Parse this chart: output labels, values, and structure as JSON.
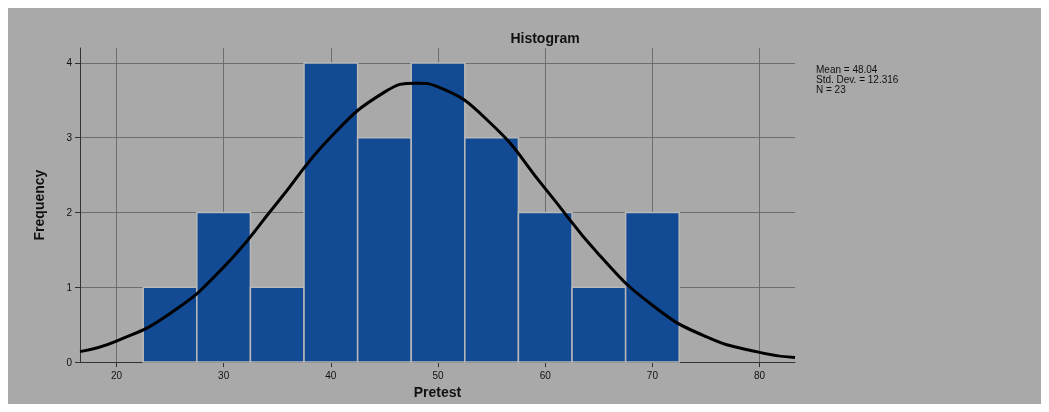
{
  "chart_data": {
    "type": "histogram",
    "title": "Histogram",
    "xlabel": "Pretest",
    "ylabel": "Frequency",
    "bins": [
      22.5,
      27.5,
      32.5,
      37.5,
      42.5,
      47.5,
      52.5,
      57.5,
      62.5,
      67.5,
      72.5
    ],
    "series": [
      {
        "color": "#124a94",
        "values": [
          1,
          2,
          1,
          4,
          3,
          4,
          3,
          2,
          1,
          2
        ]
      },
      {
        "type": "line",
        "color": "#000000",
        "x": [
          16.6,
          20,
          25,
          30,
          35,
          40,
          45,
          48.04,
          50,
          55,
          60,
          65,
          70,
          75,
          80,
          83.3
        ],
        "values": [
          0.14,
          0.28,
          0.65,
          1.27,
          2.13,
          3.01,
          3.61,
          3.73,
          3.68,
          3.18,
          2.32,
          1.44,
          0.76,
          0.34,
          0.13,
          0.06
        ]
      }
    ],
    "xlim": [
      16.6,
      83.3
    ],
    "xticks": [
      20,
      30,
      40,
      50,
      60,
      70,
      80
    ],
    "ylim": [
      0,
      4.2
    ],
    "yticks": [
      0,
      1,
      2,
      3,
      4
    ],
    "grid": true,
    "marker": "none",
    "line_style": "solid",
    "annotations": [
      "Mean = 48.04",
      "Std. Dev. = 12.316",
      "N = 23"
    ]
  }
}
